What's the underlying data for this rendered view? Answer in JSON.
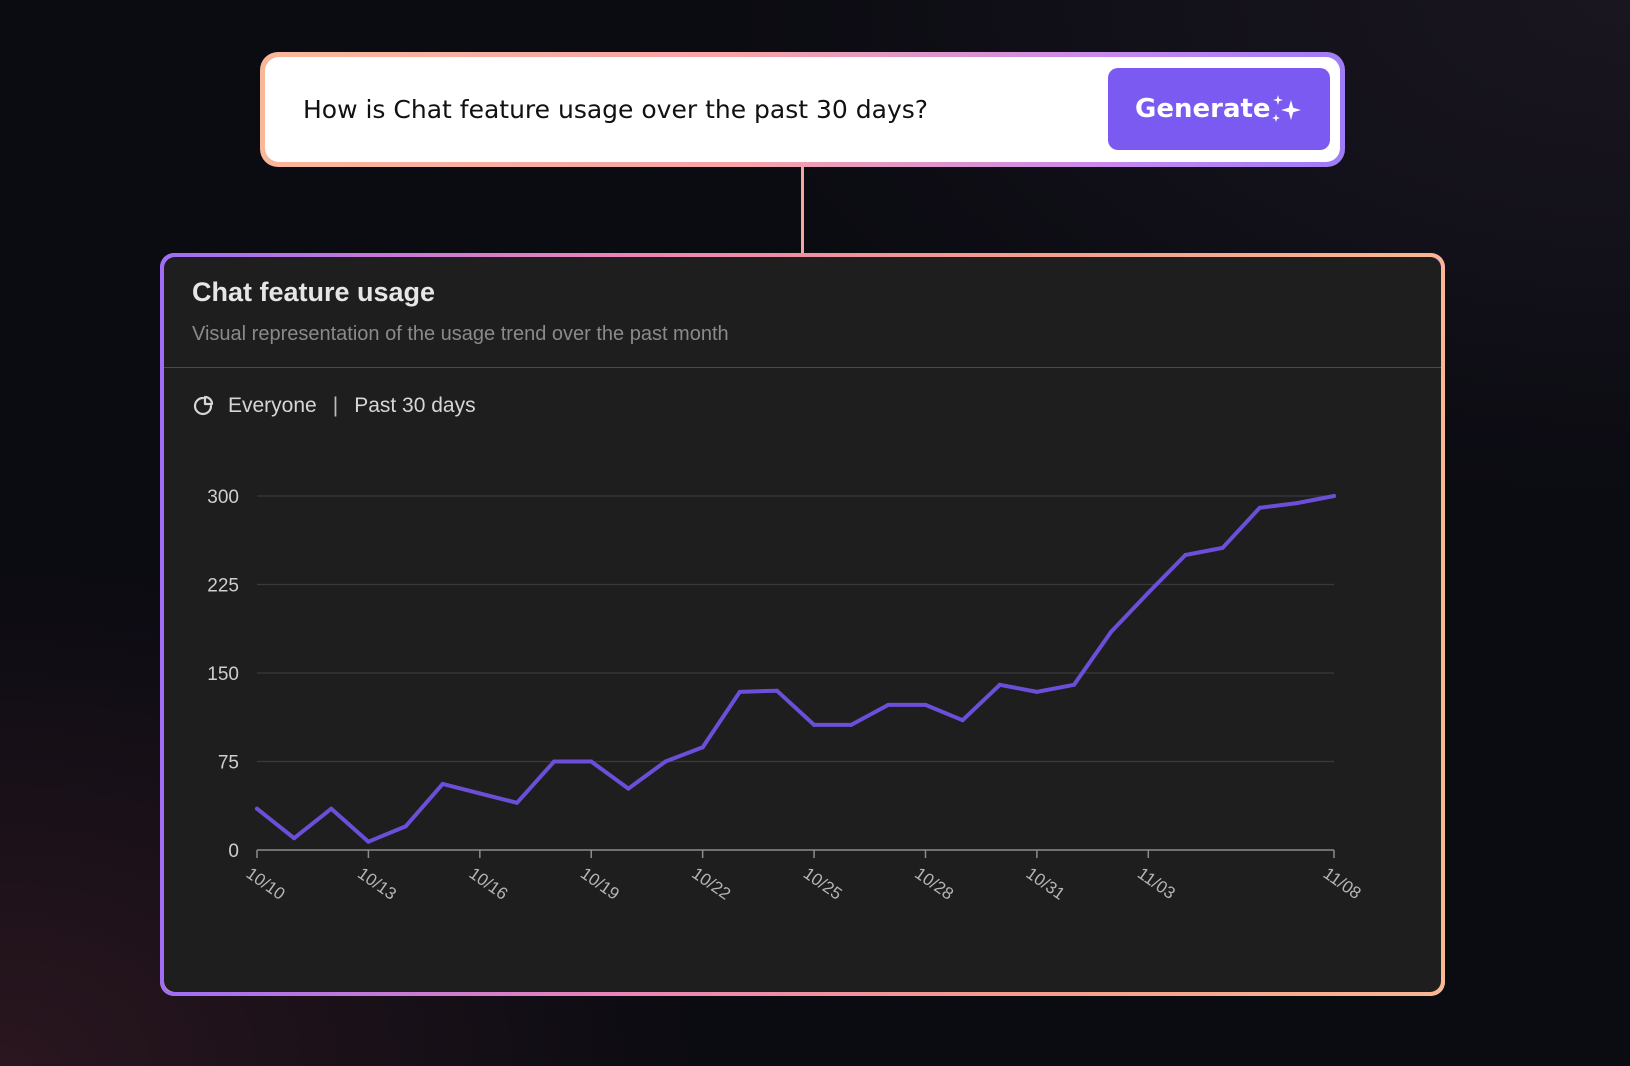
{
  "prompt": {
    "question": "How is Chat feature usage over the past 30 days?",
    "generate_label": "Generate",
    "generate_icon": "sparkle-icon"
  },
  "card": {
    "title": "Chat feature usage",
    "subtitle": "Visual representation of the usage trend over the past month",
    "filter_icon": "pie-chart-icon",
    "audience": "Everyone",
    "separator": "|",
    "period": "Past 30 days"
  },
  "colors": {
    "line": "#6b4fd8",
    "button": "#7a5af0",
    "card_bg": "#1e1e1e"
  },
  "chart_data": {
    "type": "line",
    "title": "",
    "xlabel": "",
    "ylabel": "",
    "ylim": [
      0,
      300
    ],
    "yticks": [
      0,
      75,
      150,
      225,
      300
    ],
    "grid": true,
    "x_tick_labels": [
      "10/10",
      "10/13",
      "10/16",
      "10/19",
      "10/22",
      "10/25",
      "10/28",
      "10/31",
      "11/03",
      "11/08"
    ],
    "series": [
      {
        "name": "",
        "x": [
          "10/10",
          "10/11",
          "10/12",
          "10/13",
          "10/14",
          "10/15",
          "10/16",
          "10/17",
          "10/18",
          "10/19",
          "10/20",
          "10/21",
          "10/22",
          "10/23",
          "10/24",
          "10/25",
          "10/26",
          "10/27",
          "10/28",
          "10/29",
          "10/30",
          "10/31",
          "11/01",
          "11/02",
          "11/03",
          "11/04",
          "11/05",
          "11/06",
          "11/07",
          "11/08"
        ],
        "values": [
          35,
          10,
          35,
          7,
          20,
          56,
          48,
          40,
          75,
          75,
          52,
          75,
          87,
          134,
          135,
          106,
          106,
          123,
          123,
          110,
          140,
          134,
          140,
          185,
          218,
          250,
          256,
          290,
          294,
          300
        ]
      }
    ]
  }
}
